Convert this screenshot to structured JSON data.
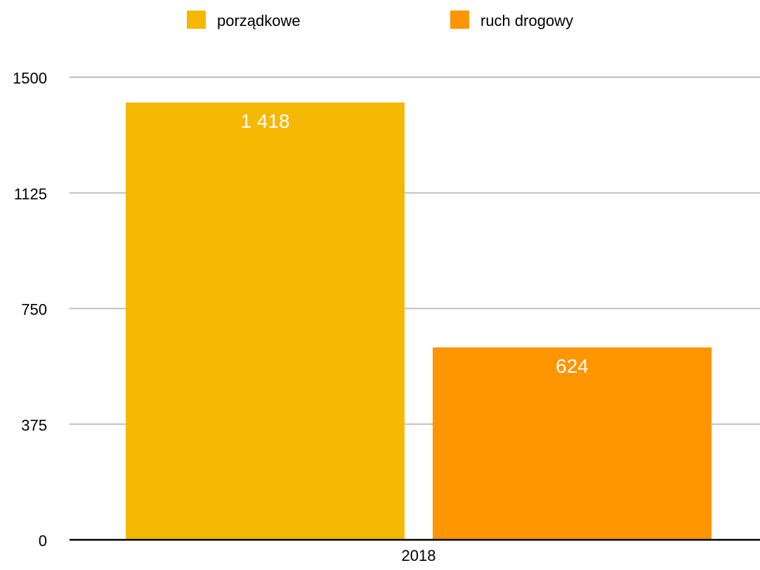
{
  "chart_data": {
    "type": "bar",
    "title": "",
    "xlabel": "",
    "ylabel": "",
    "categories": [
      "2018"
    ],
    "series": [
      {
        "name": "porządkowe",
        "values": [
          1418
        ],
        "label": "1 418",
        "color": "#F5B800"
      },
      {
        "name": "ruch drogowy",
        "values": [
          624
        ],
        "label": "624",
        "color": "#FF9500"
      }
    ],
    "ylim": [
      0,
      1500
    ],
    "yticks": [
      "0",
      "375",
      "750",
      "1125",
      "1500"
    ],
    "grid": true,
    "legend_position": "top-center",
    "colors": {
      "grid": "#BFBFBF",
      "axis": "#000000",
      "data_label": "#FFFFFF",
      "tick_label": "#000000"
    }
  }
}
